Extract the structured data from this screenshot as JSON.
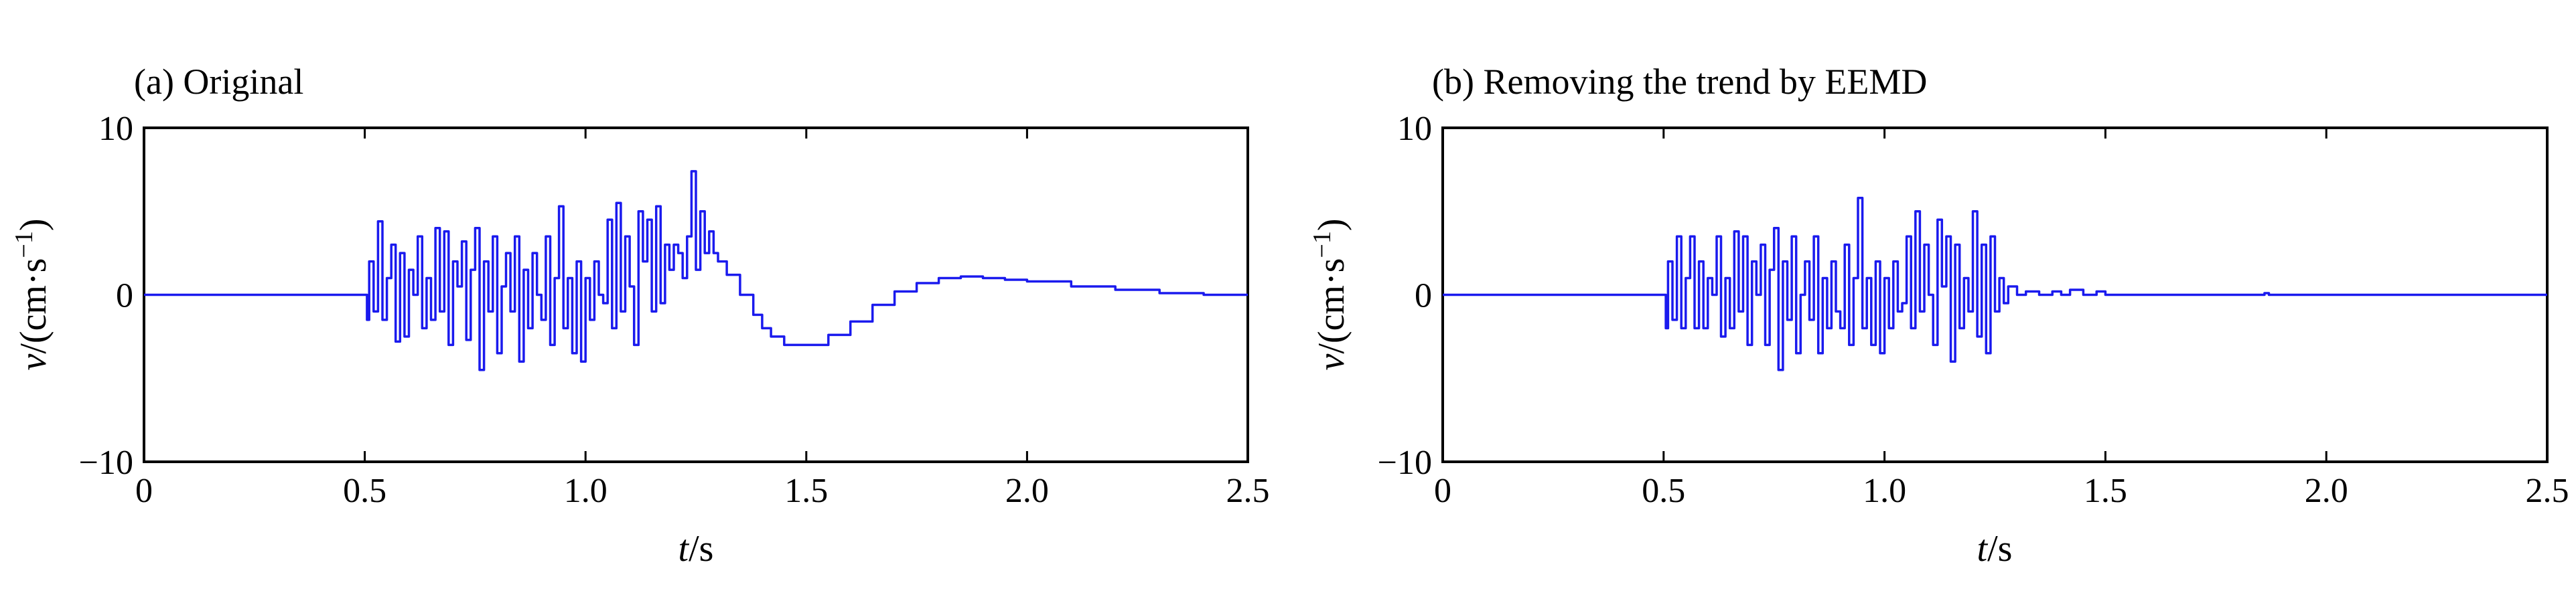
{
  "chart_data": [
    {
      "type": "line",
      "title": "(a) Original",
      "xlabel": "t/s",
      "ylabel": "v/(cm·s⁻¹)",
      "xlim": [
        0,
        2.5
      ],
      "ylim": [
        -10,
        10
      ],
      "xticks": [
        "0",
        "0.5",
        "1.0",
        "1.5",
        "2.0",
        "2.5"
      ],
      "yticks": [
        "10",
        "0",
        "−10"
      ],
      "grid": false,
      "color": "#1a1aee",
      "series": [
        {
          "x": [
            0,
            0.1,
            0.2,
            0.3,
            0.4,
            0.5,
            0.505,
            0.51,
            0.52,
            0.53,
            0.54,
            0.55,
            0.56,
            0.57,
            0.58,
            0.59,
            0.6,
            0.61,
            0.62,
            0.63,
            0.64,
            0.65,
            0.66,
            0.67,
            0.68,
            0.69,
            0.7,
            0.71,
            0.72,
            0.73,
            0.74,
            0.75,
            0.76,
            0.77,
            0.78,
            0.79,
            0.8,
            0.81,
            0.82,
            0.83,
            0.84,
            0.85,
            0.86,
            0.87,
            0.88,
            0.89,
            0.9,
            0.91,
            0.92,
            0.93,
            0.94,
            0.95,
            0.96,
            0.97,
            0.98,
            0.99,
            1.0,
            1.01,
            1.02,
            1.03,
            1.04,
            1.05,
            1.06,
            1.07,
            1.08,
            1.09,
            1.1,
            1.11,
            1.12,
            1.13,
            1.14,
            1.15,
            1.16,
            1.17,
            1.18,
            1.19,
            1.2,
            1.21,
            1.22,
            1.23,
            1.24,
            1.25,
            1.26,
            1.27,
            1.28,
            1.29,
            1.3,
            1.32,
            1.35,
            1.38,
            1.4,
            1.42,
            1.45,
            1.48,
            1.5,
            1.55,
            1.6,
            1.65,
            1.7,
            1.75,
            1.8,
            1.85,
            1.9,
            1.95,
            2.0,
            2.1,
            2.2,
            2.3,
            2.4,
            2.5
          ],
          "y": [
            0,
            0,
            0,
            0,
            0,
            0,
            -1.5,
            2,
            -1,
            4.4,
            -1.5,
            1,
            3,
            -2.8,
            2.5,
            -2.5,
            1.5,
            0,
            3.5,
            -2,
            1,
            -1.5,
            4,
            -1,
            3.8,
            -3,
            2,
            0.5,
            3.2,
            -2.7,
            1.5,
            4,
            -4.5,
            2,
            -1,
            3.5,
            -3.5,
            0.5,
            2.5,
            -1,
            3.5,
            -4,
            1.5,
            -2,
            2.5,
            0,
            -1.5,
            3.5,
            -3,
            1,
            5.3,
            -2,
            1,
            -3.5,
            2,
            -4,
            1,
            -1.5,
            2,
            0,
            -0.5,
            4.5,
            -2,
            5.5,
            -1,
            3.5,
            0.5,
            -3,
            5,
            2,
            4.5,
            -1,
            5.3,
            -0.5,
            3,
            1.5,
            3,
            2.5,
            1,
            3.5,
            7.4,
            1.5,
            5,
            2.5,
            3.8,
            2.5,
            2,
            1.2,
            0,
            -1.2,
            -2.0,
            -2.5,
            -3.0,
            -3.0,
            -3.0,
            -2.4,
            -1.6,
            -0.6,
            0.2,
            0.7,
            1.0,
            1.1,
            1.0,
            0.9,
            0.8,
            0.5,
            0.3,
            0.1,
            0,
            0
          ]
        }
      ]
    },
    {
      "type": "line",
      "title": "(b) Removing the trend by EEMD",
      "xlabel": "t/s",
      "ylabel": "v/(cm·s⁻¹)",
      "xlim": [
        0,
        2.5
      ],
      "ylim": [
        -10,
        10
      ],
      "xticks": [
        "0",
        "0.5",
        "1.0",
        "1.5",
        "2.0",
        "2.5"
      ],
      "yticks": [
        "10",
        "0",
        "−10"
      ],
      "grid": false,
      "color": "#1a1aee",
      "series": [
        {
          "x": [
            0,
            0.1,
            0.2,
            0.3,
            0.4,
            0.5,
            0.505,
            0.51,
            0.52,
            0.53,
            0.54,
            0.55,
            0.56,
            0.57,
            0.58,
            0.59,
            0.6,
            0.61,
            0.62,
            0.63,
            0.64,
            0.65,
            0.66,
            0.67,
            0.68,
            0.69,
            0.7,
            0.71,
            0.72,
            0.73,
            0.74,
            0.75,
            0.76,
            0.77,
            0.78,
            0.79,
            0.8,
            0.81,
            0.82,
            0.83,
            0.84,
            0.85,
            0.86,
            0.87,
            0.88,
            0.89,
            0.9,
            0.91,
            0.92,
            0.93,
            0.94,
            0.95,
            0.96,
            0.97,
            0.98,
            0.99,
            1.0,
            1.01,
            1.02,
            1.03,
            1.04,
            1.05,
            1.06,
            1.07,
            1.08,
            1.09,
            1.1,
            1.11,
            1.12,
            1.13,
            1.14,
            1.15,
            1.16,
            1.17,
            1.18,
            1.19,
            1.2,
            1.21,
            1.22,
            1.23,
            1.24,
            1.25,
            1.26,
            1.27,
            1.28,
            1.3,
            1.32,
            1.35,
            1.38,
            1.4,
            1.42,
            1.45,
            1.48,
            1.5,
            1.6,
            1.7,
            1.8,
            1.85,
            1.86,
            1.87,
            1.9,
            2.0,
            2.1,
            2.2,
            2.3,
            2.4,
            2.5
          ],
          "y": [
            0,
            0,
            0,
            0,
            0,
            0,
            -2,
            2,
            -1.5,
            3.5,
            -2,
            1,
            3.5,
            -2,
            2,
            -2,
            1,
            0,
            3.5,
            -2.5,
            1,
            -2,
            3.8,
            -1,
            3.5,
            -3,
            2,
            0,
            3,
            -3,
            1.5,
            4,
            -4.5,
            2,
            -1.5,
            3.5,
            -3.5,
            0,
            2,
            -1.5,
            3.5,
            -3.5,
            1,
            -2,
            2,
            -1,
            -2,
            3,
            -3,
            1,
            5.8,
            -2,
            1,
            -3,
            2,
            -3.5,
            1,
            -2,
            2,
            -1,
            -0.5,
            3.5,
            -2,
            5,
            -1,
            3,
            0,
            -3,
            4.5,
            0.5,
            3.5,
            -4,
            3,
            -2,
            1,
            -1,
            5,
            -2.5,
            3,
            -3.5,
            3.5,
            -1,
            1,
            -0.5,
            0.5,
            0,
            0.2,
            0,
            0.2,
            0,
            0.3,
            0,
            0.2,
            0,
            0,
            0,
            0,
            0,
            0.1,
            0,
            0,
            0,
            0,
            0,
            0,
            0,
            0
          ]
        }
      ]
    }
  ]
}
